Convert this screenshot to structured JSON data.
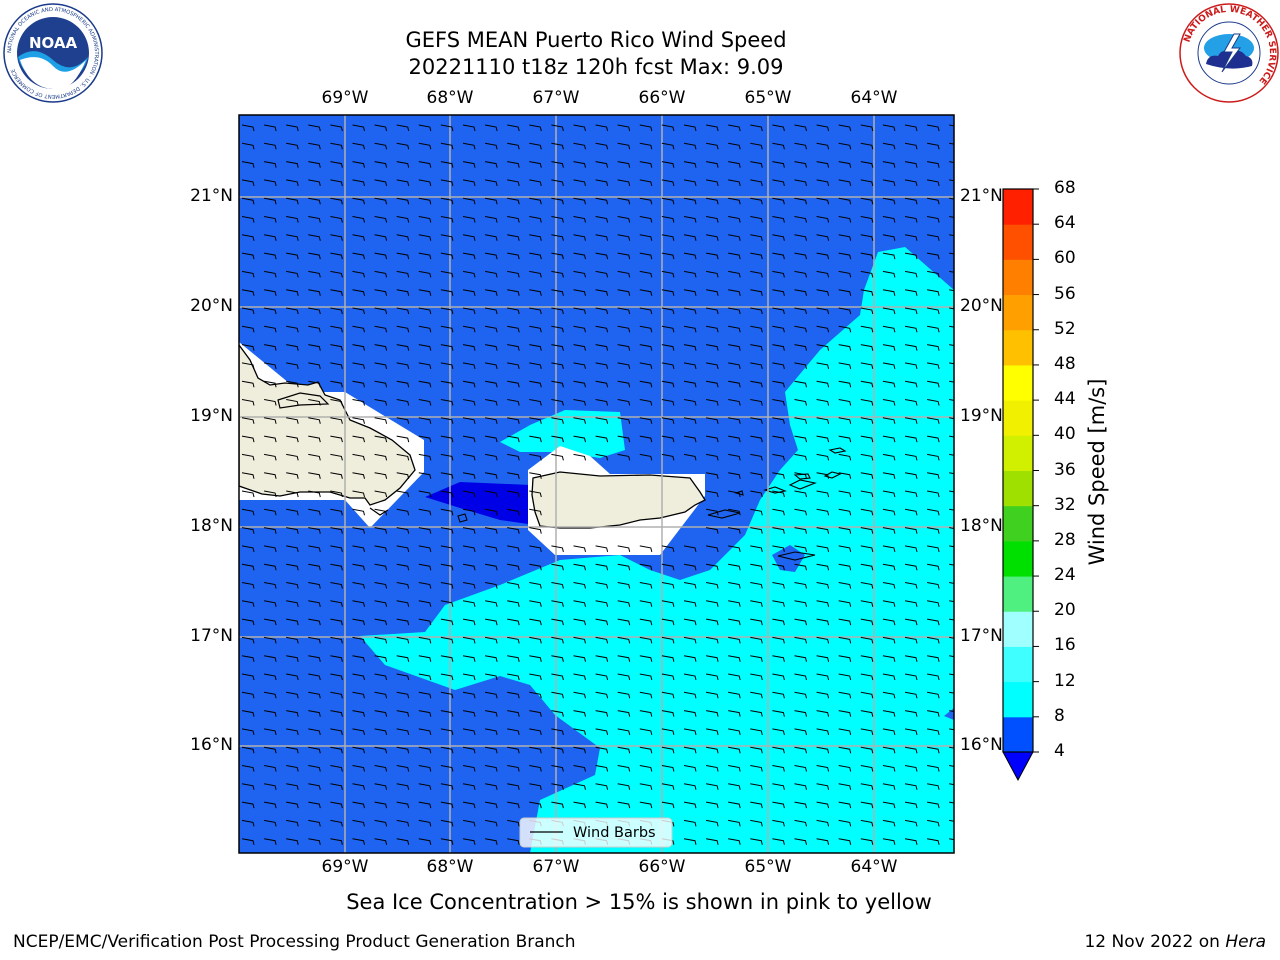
{
  "title": {
    "line1": "GEFS MEAN Puerto Rico Wind Speed",
    "line2": "20221110 t18z 120h fcst   Max: 9.09"
  },
  "lon_labels": [
    "69°W",
    "68°W",
    "67°W",
    "66°W",
    "65°W",
    "64°W"
  ],
  "lat_labels": [
    "21°N",
    "20°N",
    "19°N",
    "18°N",
    "17°N",
    "16°N"
  ],
  "legend": {
    "label": "Wind Barbs"
  },
  "colorbar": {
    "label": "Wind Speed [m/s]",
    "ticks": [
      "4",
      "8",
      "12",
      "16",
      "20",
      "24",
      "28",
      "32",
      "36",
      "40",
      "44",
      "48",
      "52",
      "56",
      "60",
      "64",
      "68"
    ],
    "colors": [
      "#0050ff",
      "#00ffff",
      "#40ffff",
      "#a0ffff",
      "#50f080",
      "#00e000",
      "#40d020",
      "#a0e000",
      "#d0f000",
      "#f0f000",
      "#ffff00",
      "#ffc000",
      "#ffa000",
      "#ff8000",
      "#ff5000",
      "#ff2000"
    ],
    "extend_color": "#0000ff"
  },
  "note": "Sea Ice Concentration > 15% is shown in pink to yellow",
  "footer": {
    "left": "NCEP/EMC/Verification Post Processing Product Generation Branch",
    "right_prefix": "12 Nov 2022 on ",
    "right_machine": "Hera"
  },
  "logos": {
    "noaa_text": "NOAA",
    "noaa_ring": "NATIONAL OCEANIC AND ATMOSPHERIC ADMINISTRATION · U.S. DEPARTMENT OF COMMERCE",
    "nws_ring": "NATIONAL WEATHER SERVICE"
  },
  "colors": {
    "low_wind": "#1e64f0",
    "mid_wind": "#00ffff",
    "calm": "#0000e6",
    "land": "#efeedc"
  }
}
